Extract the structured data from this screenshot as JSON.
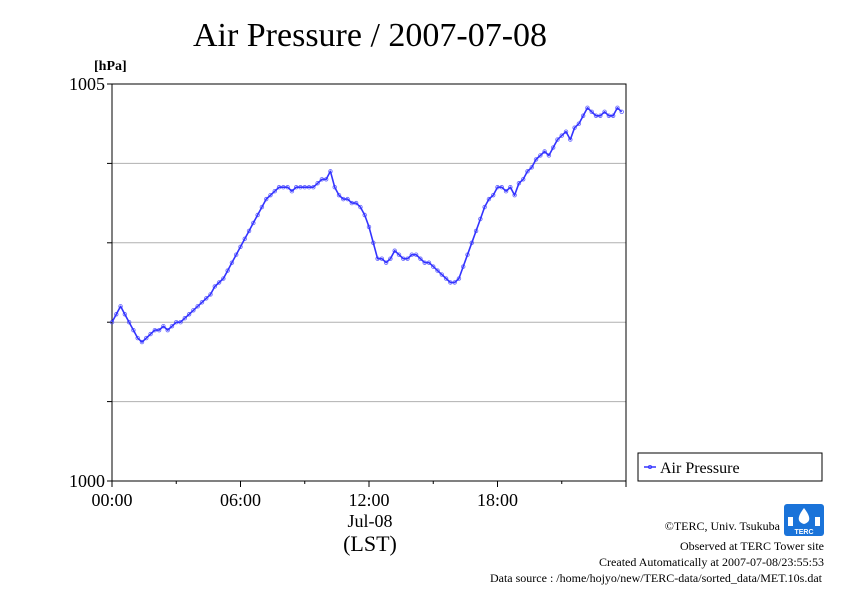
{
  "chart_data": {
    "type": "line",
    "title": "Air Pressure / 2007-07-08",
    "ylabel": "[hPa]",
    "ylim": [
      1000,
      1005
    ],
    "y_ticks_labeled": [
      "1000",
      "1005"
    ],
    "y_grid": [
      1001,
      1002,
      1003,
      1004
    ],
    "xlim": [
      0,
      24
    ],
    "x_ticks": [
      {
        "hour": 0,
        "label": "00:00"
      },
      {
        "hour": 6,
        "label": "06:00"
      },
      {
        "hour": 12,
        "label": "12:00"
      },
      {
        "hour": 18,
        "label": "18:00"
      }
    ],
    "x_date_label": "Jul-08",
    "x_timezone_label": "(LST)",
    "grid": "horizontal",
    "legend_position": "right",
    "series": [
      {
        "name": "Air Pressure",
        "color": "#3333ff",
        "x": [
          0.0,
          0.2,
          0.4,
          0.6,
          0.8,
          1.0,
          1.2,
          1.4,
          1.6,
          1.8,
          2.0,
          2.2,
          2.4,
          2.6,
          2.8,
          3.0,
          3.2,
          3.4,
          3.6,
          3.8,
          4.0,
          4.2,
          4.4,
          4.6,
          4.8,
          5.0,
          5.2,
          5.4,
          5.6,
          5.8,
          6.0,
          6.2,
          6.4,
          6.6,
          6.8,
          7.0,
          7.2,
          7.4,
          7.6,
          7.8,
          8.0,
          8.2,
          8.4,
          8.6,
          8.8,
          9.0,
          9.2,
          9.4,
          9.6,
          9.8,
          10.0,
          10.2,
          10.4,
          10.6,
          10.8,
          11.0,
          11.2,
          11.4,
          11.6,
          11.8,
          12.0,
          12.2,
          12.4,
          12.6,
          12.8,
          13.0,
          13.2,
          13.4,
          13.6,
          13.8,
          14.0,
          14.2,
          14.4,
          14.6,
          14.8,
          15.0,
          15.2,
          15.4,
          15.6,
          15.8,
          16.0,
          16.2,
          16.4,
          16.6,
          16.8,
          17.0,
          17.2,
          17.4,
          17.6,
          17.8,
          18.0,
          18.2,
          18.4,
          18.6,
          18.8,
          19.0,
          19.2,
          19.4,
          19.6,
          19.8,
          20.0,
          20.2,
          20.4,
          20.6,
          20.8,
          21.0,
          21.2,
          21.4,
          21.6,
          21.8,
          22.0,
          22.2,
          22.4,
          22.6,
          22.8,
          23.0,
          23.2,
          23.4,
          23.6,
          23.8
        ],
        "values": [
          1002.0,
          1002.1,
          1002.2,
          1002.1,
          1002.0,
          1001.9,
          1001.8,
          1001.75,
          1001.8,
          1001.85,
          1001.9,
          1001.9,
          1001.95,
          1001.9,
          1001.95,
          1002.0,
          1002.0,
          1002.05,
          1002.1,
          1002.15,
          1002.2,
          1002.25,
          1002.3,
          1002.35,
          1002.45,
          1002.5,
          1002.55,
          1002.65,
          1002.75,
          1002.85,
          1002.95,
          1003.05,
          1003.15,
          1003.25,
          1003.35,
          1003.45,
          1003.55,
          1003.6,
          1003.65,
          1003.7,
          1003.7,
          1003.7,
          1003.65,
          1003.7,
          1003.7,
          1003.7,
          1003.7,
          1003.7,
          1003.75,
          1003.8,
          1003.8,
          1003.9,
          1003.7,
          1003.6,
          1003.55,
          1003.55,
          1003.5,
          1003.5,
          1003.45,
          1003.35,
          1003.2,
          1003.0,
          1002.8,
          1002.8,
          1002.75,
          1002.8,
          1002.9,
          1002.85,
          1002.8,
          1002.8,
          1002.85,
          1002.85,
          1002.8,
          1002.75,
          1002.75,
          1002.7,
          1002.65,
          1002.6,
          1002.55,
          1002.5,
          1002.5,
          1002.55,
          1002.7,
          1002.85,
          1003.0,
          1003.15,
          1003.3,
          1003.45,
          1003.55,
          1003.6,
          1003.7,
          1003.7,
          1003.65,
          1003.7,
          1003.6,
          1003.75,
          1003.8,
          1003.9,
          1003.95,
          1004.05,
          1004.1,
          1004.15,
          1004.1,
          1004.2,
          1004.3,
          1004.35,
          1004.4,
          1004.3,
          1004.45,
          1004.5,
          1004.6,
          1004.7,
          1004.65,
          1004.6,
          1004.6,
          1004.65,
          1004.6,
          1004.6,
          1004.7,
          1004.65
        ]
      }
    ]
  },
  "footer": {
    "copyright": "©TERC, Univ. Tsukuba",
    "observed": "Observed at TERC Tower site",
    "created": "Created Automatically at 2007-07-08/23:55:53",
    "source": "Data source : /home/hojyo/new/TERC-data/sorted_data/MET.10s.dat"
  },
  "logo": {
    "text": "TERC",
    "color": "#1a73d9"
  }
}
